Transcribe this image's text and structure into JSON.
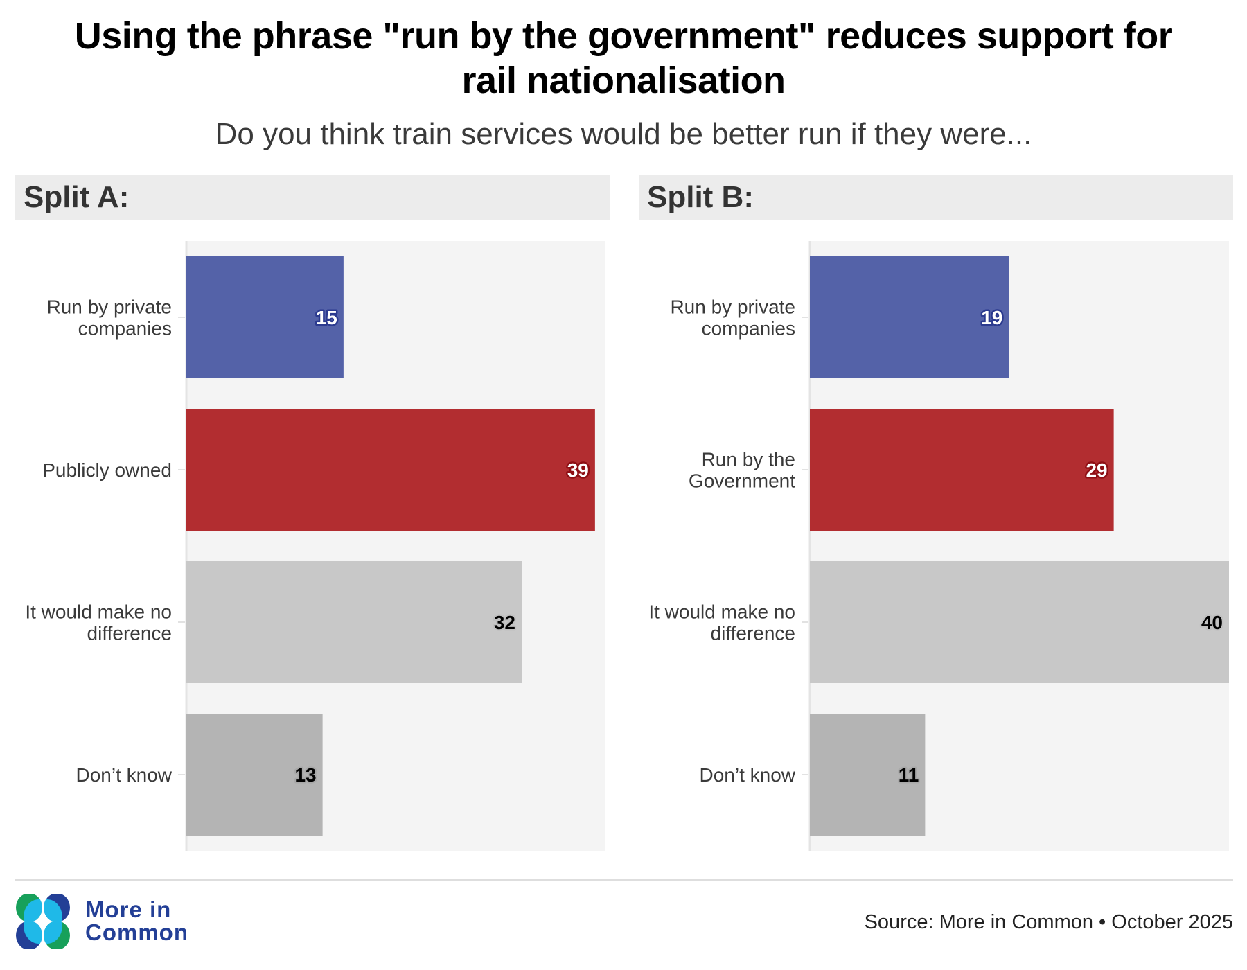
{
  "title_line1": "Using the phrase \"run by the government\" reduces support for",
  "title_line2": "rail nationalisation",
  "subtitle": "Do you think train services would be better run if they were...",
  "footer": {
    "logo_line1": "More in",
    "logo_line2": "Common",
    "source": "Source: More in Common • October 2025"
  },
  "colors": {
    "private": "#5462a8",
    "public": "#b22d30",
    "no_difference": "#c8c8c8",
    "dont_know": "#b4b4b4",
    "plot_bg": "#f4f4f4",
    "header_bg": "#ececec",
    "logo_blue": "#233f96",
    "logo_cyan": "#1fb9e8",
    "logo_green": "#17a05a"
  },
  "chart_data": [
    {
      "type": "bar",
      "orientation": "horizontal",
      "title": "Split A:",
      "categories": [
        "Run by private companies",
        "Publicly owned",
        "It would make no difference",
        "Don’t know"
      ],
      "category_lines": [
        [
          "Run by private",
          "companies"
        ],
        [
          "Publicly owned"
        ],
        [
          "It would make no",
          "difference"
        ],
        [
          "Don’t know"
        ]
      ],
      "values": [
        15,
        39,
        32,
        13
      ],
      "bar_colors": [
        "#5462a8",
        "#b22d30",
        "#c8c8c8",
        "#b4b4b4"
      ],
      "label_colors": [
        "#ffffff",
        "#ffffff",
        "#000000",
        "#000000"
      ],
      "label_outline": [
        "#2b3a8f",
        "#8e0f14",
        "#c0c0c0",
        "#a8a8a8"
      ],
      "xlim": [
        0,
        40
      ],
      "xlabel": "",
      "ylabel": "",
      "grid": false,
      "legend": "none"
    },
    {
      "type": "bar",
      "orientation": "horizontal",
      "title": "Split B:",
      "categories": [
        "Run by private companies",
        "Run by the Government",
        "It would make no difference",
        "Don’t know"
      ],
      "category_lines": [
        [
          "Run by private",
          "companies"
        ],
        [
          "Run by the",
          "Government"
        ],
        [
          "It would make no",
          "difference"
        ],
        [
          "Don’t know"
        ]
      ],
      "values": [
        19,
        29,
        40,
        11
      ],
      "bar_colors": [
        "#5462a8",
        "#b22d30",
        "#c8c8c8",
        "#b4b4b4"
      ],
      "label_colors": [
        "#ffffff",
        "#ffffff",
        "#000000",
        "#000000"
      ],
      "label_outline": [
        "#2b3a8f",
        "#8e0f14",
        "#c0c0c0",
        "#a8a8a8"
      ],
      "xlim": [
        0,
        40
      ],
      "xlabel": "",
      "ylabel": "",
      "grid": false,
      "legend": "none"
    }
  ]
}
